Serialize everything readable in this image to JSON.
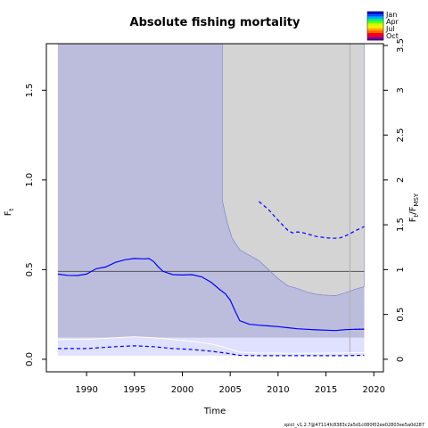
{
  "chart_data": {
    "type": "line",
    "title": "Absolute fishing mortality",
    "xlabel": "Time",
    "ylabel_left": "F_t",
    "ylabel_right": "F_t/F_MSY",
    "xlim": [
      1985.8,
      2021
    ],
    "ylim_left": [
      -0.07,
      1.76
    ],
    "ylim_right": [
      -0.14,
      3.52
    ],
    "x_ticks": [
      1990,
      1995,
      2000,
      2005,
      2010,
      2015,
      2020
    ],
    "y_ticks_left": [
      "0.0",
      "0.5",
      "1.0",
      "1.5"
    ],
    "y_ticks_right": [
      "0",
      "0.5",
      "1",
      "1.5",
      "2",
      "2.5",
      "3",
      "3.5"
    ],
    "fmsy_ci_band": {
      "lower": 0.12,
      "upper": 1.76,
      "x_range": [
        1987,
        2019
      ]
    },
    "fmsy_line": 0.49,
    "current_year_marker": 2017.5,
    "series": [
      {
        "name": "F estimate",
        "x": [
          1987,
          1988,
          1989,
          1990,
          1990.5,
          1991,
          1992,
          1993,
          1994,
          1995,
          1996,
          1996.5,
          1997,
          1997.5,
          1998,
          1999,
          2000,
          2001,
          2002,
          2003,
          2004,
          2004.5,
          2005,
          2005.5,
          2006,
          2007,
          2008,
          2009,
          2010,
          2011,
          2012,
          2013,
          2014,
          2015,
          2016,
          2017,
          2018,
          2019
        ],
        "values": [
          0.475,
          0.468,
          0.467,
          0.475,
          0.49,
          0.505,
          0.515,
          0.54,
          0.555,
          0.562,
          0.56,
          0.562,
          0.545,
          0.515,
          0.49,
          0.472,
          0.47,
          0.472,
          0.46,
          0.43,
          0.385,
          0.365,
          0.33,
          0.27,
          0.215,
          0.195,
          0.19,
          0.186,
          0.182,
          0.176,
          0.17,
          0.167,
          0.164,
          0.162,
          0.16,
          0.165,
          0.167,
          0.168
        ]
      },
      {
        "name": "F lower CI",
        "x": [
          1987,
          1990,
          1993,
          1995,
          1997,
          1999,
          2001,
          2003,
          2004.5,
          2006,
          2008,
          2011,
          2014,
          2017,
          2019
        ],
        "values": [
          0.06,
          0.06,
          0.07,
          0.075,
          0.07,
          0.06,
          0.055,
          0.045,
          0.035,
          0.022,
          0.02,
          0.02,
          0.02,
          0.02,
          0.022
        ]
      },
      {
        "name": "F upper CI",
        "x": [
          1987,
          1990,
          1993,
          1995,
          1997,
          1999,
          2001,
          2003,
          2004.5,
          2006,
          2008,
          2011,
          2014,
          2017,
          2019
        ],
        "values": [
          0.11,
          0.11,
          0.12,
          0.125,
          0.12,
          0.11,
          0.1,
          0.085,
          0.065,
          0.04,
          0.035,
          0.034,
          0.034,
          0.035,
          0.038
        ]
      },
      {
        "name": "F/Fmsy lower CI",
        "x": [
          2004.2,
          2004.7,
          2005.2,
          2006,
          2007,
          2008,
          2009,
          2010,
          2011,
          2012,
          2013,
          2014,
          2015,
          2016,
          2017,
          2018,
          2019
        ],
        "values": [
          1.76,
          1.52,
          1.35,
          1.22,
          1.16,
          1.1,
          1.0,
          0.9,
          0.82,
          0.79,
          0.75,
          0.725,
          0.715,
          0.71,
          0.74,
          0.78,
          0.81
        ]
      },
      {
        "name": "F/Fmsy upper CI",
        "x": [
          2008,
          2009,
          2010,
          2011,
          2011.5,
          2012,
          2012.5,
          2013,
          2014,
          2015,
          2016,
          2016.5,
          2017,
          2017.5,
          2018,
          2019
        ],
        "values": [
          1.76,
          1.67,
          1.55,
          1.44,
          1.41,
          1.42,
          1.415,
          1.4,
          1.37,
          1.355,
          1.35,
          1.355,
          1.375,
          1.4,
          1.43,
          1.48
        ]
      }
    ],
    "legend": {
      "position": "top-right",
      "labels": [
        "Jan",
        "Apr",
        "Jul",
        "Oct"
      ],
      "colors": [
        "#0000cc",
        "#0050ff",
        "#00aaff",
        "#00ee88",
        "#66ff00",
        "#ccff00",
        "#ffee00",
        "#ffaa00",
        "#ff6600",
        "#ff0000",
        "#cc0066",
        "#660099"
      ]
    },
    "colors": {
      "ci_band": "#bcbddc",
      "fmsy_ci_band": "#d4d4d4",
      "lower_band": "#e0e0ff",
      "estimate": "#0000ff",
      "fmsy_line": "#555555",
      "marker": "#b0b0b0"
    }
  },
  "footer": "spict_v1.2.7@47114fc8383c2a5d1c080f02ee02803ee5a0d287"
}
